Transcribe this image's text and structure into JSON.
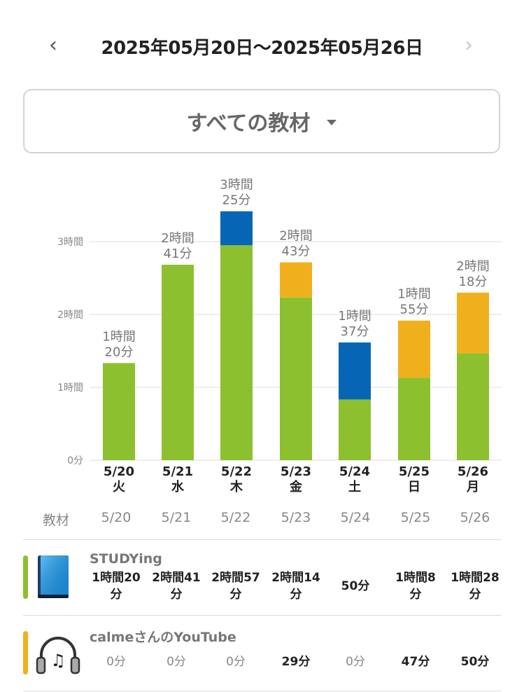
{
  "header": {
    "date_range": "2025年05月20日〜2025年05月26日",
    "prev_icon": "chevron-left-icon",
    "next_icon": "chevron-right-icon",
    "prev_symbol": "‹",
    "next_symbol": "›"
  },
  "filter": {
    "label": "すべての教材",
    "icon": "caret-down-icon"
  },
  "chart_data": {
    "type": "bar",
    "stacked": true,
    "grid": true,
    "y_unit": "hours",
    "ylim": [
      0,
      3.5
    ],
    "yticks": [
      {
        "value": 0,
        "label": "0分"
      },
      {
        "value": 1,
        "label": "1時間"
      },
      {
        "value": 2,
        "label": "2時間"
      },
      {
        "value": 3,
        "label": "3時間"
      }
    ],
    "categories": [
      "5/20",
      "5/21",
      "5/22",
      "5/23",
      "5/24",
      "5/25",
      "5/26"
    ],
    "weekdays": [
      "火",
      "水",
      "木",
      "金",
      "土",
      "日",
      "月"
    ],
    "totals": [
      [
        "1時間",
        "20分"
      ],
      [
        "2時間",
        "41分"
      ],
      [
        "3時間",
        "25分"
      ],
      [
        "2時間",
        "43分"
      ],
      [
        "1時間",
        "37分"
      ],
      [
        "1時間",
        "55分"
      ],
      [
        "2時間",
        "18分"
      ]
    ],
    "series": [
      {
        "color": "#8dc02e",
        "values": [
          1.333,
          2.683,
          2.95,
          2.233,
          0.833,
          1.133,
          1.467
        ]
      },
      {
        "color": "#f0b01e",
        "values": [
          0,
          0,
          0,
          0.483,
          0,
          0.783,
          0.833
        ]
      },
      {
        "color": "#0666b5",
        "values": [
          0,
          0,
          0.467,
          0,
          0.783,
          0,
          0
        ]
      }
    ]
  },
  "table": {
    "header_label": "教材",
    "columns": [
      "5/20",
      "5/21",
      "5/22",
      "5/23",
      "5/24",
      "5/25",
      "5/26"
    ],
    "rows": [
      {
        "name": "STUDYing",
        "icon": "blue-book-icon",
        "color": "#8dc02e",
        "cells": [
          [
            "1時間20",
            "分"
          ],
          [
            "2時間41",
            "分"
          ],
          [
            "2時間57",
            "分"
          ],
          [
            "2時間14",
            "分"
          ],
          [
            "50分"
          ],
          [
            "1時間8",
            "分"
          ],
          [
            "1時間28",
            "分"
          ]
        ]
      },
      {
        "name": "calmeさんのYouTube",
        "icon": "headphones-music-icon",
        "color": "#f0b01e",
        "cells": [
          [
            "0分"
          ],
          [
            "0分"
          ],
          [
            "0分"
          ],
          [
            "29分"
          ],
          [
            "0分"
          ],
          [
            "47分"
          ],
          [
            "50分"
          ]
        ]
      }
    ]
  }
}
